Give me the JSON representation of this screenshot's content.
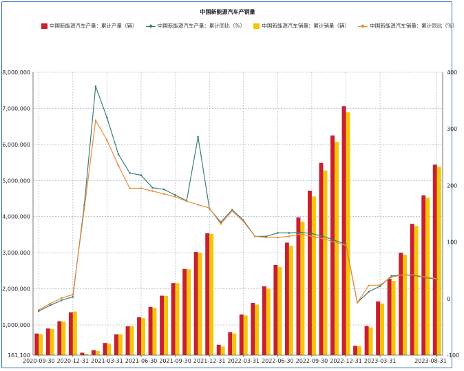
{
  "chart_data": {
    "type": "bar",
    "title": "中国新能源汽车产销量",
    "legend_position": "top",
    "grid": true,
    "x_tick_labels": [
      "2020-09-30",
      "2020-12-31",
      "2021-03-31",
      "2021-06-30",
      "2021-09-30",
      "2021-12-31",
      "2022-03-31",
      "2022-06-30",
      "2022-09-30",
      "2022-12-31",
      "2023-03-31",
      "2023-08-31"
    ],
    "y_left_ticks": [
      "161,100",
      "1,000,000",
      "2,000,000",
      "3,000,000",
      "4,000,000",
      "5,000,000",
      "6,000,000",
      "7,000,000",
      "8,000,000"
    ],
    "y_right_ticks": [
      "-100",
      "0",
      "100",
      "200",
      "300",
      "400"
    ],
    "ylim_left": [
      161100,
      8000000
    ],
    "ylim_right": [
      -100,
      400
    ],
    "colors": {
      "production": "#c8202e",
      "sales": "#f6c40a",
      "production_yoy": "#3a7c7c",
      "sales_yoy": "#ee8a33"
    },
    "months": [
      "2020-09",
      "2020-10",
      "2020-11",
      "2020-12",
      "2021-01",
      "2021-02",
      "2021-03",
      "2021-04",
      "2021-05",
      "2021-06",
      "2021-07",
      "2021-08",
      "2021-09",
      "2021-10",
      "2021-11",
      "2021-12",
      "2022-01",
      "2022-02",
      "2022-03",
      "2022-04",
      "2022-05",
      "2022-06",
      "2022-07",
      "2022-08",
      "2022-09",
      "2022-10",
      "2022-11",
      "2022-12",
      "2023-01",
      "2023-02",
      "2023-03",
      "2023-04",
      "2023-05",
      "2023-06",
      "2023-07",
      "2023-08"
    ],
    "series": [
      {
        "name": "中国新能源汽车产量：累计产量（辆）",
        "axis": "left",
        "type": "bar",
        "values": [
          760000,
          900000,
          1100000,
          1350000,
          230000,
          300000,
          500000,
          740000,
          960000,
          1210000,
          1500000,
          1810000,
          2160000,
          2550000,
          3020000,
          3540000,
          450000,
          800000,
          1290000,
          1610000,
          2070000,
          2660000,
          3280000,
          3980000,
          4720000,
          5490000,
          6250000,
          7060000,
          420000,
          970000,
          1650000,
          2280000,
          3000000,
          3800000,
          4590000,
          5440000
        ]
      },
      {
        "name": "中国新能源汽车产量：累计同比（%）",
        "axis": "right",
        "type": "line",
        "values": [
          -22,
          -12,
          -3,
          3,
          165,
          375,
          320,
          255,
          222,
          218,
          196,
          193,
          183,
          173,
          286,
          159,
          135,
          157,
          138,
          110,
          110,
          116,
          116,
          117,
          115,
          110,
          103,
          96,
          -7,
          12,
          22,
          40,
          42,
          41,
          37,
          34
        ]
      },
      {
        "name": "中国新能源汽车销量：累计销量（辆）",
        "axis": "left",
        "type": "bar",
        "values": [
          740000,
          890000,
          1090000,
          1370000,
          200000,
          280000,
          480000,
          740000,
          960000,
          1190000,
          1470000,
          1800000,
          2160000,
          2540000,
          3000000,
          3520000,
          400000,
          760000,
          1260000,
          1560000,
          2000000,
          2600000,
          3190000,
          3860000,
          4560000,
          5280000,
          6070000,
          6890000,
          410000,
          930000,
          1590000,
          2220000,
          2940000,
          3740000,
          4520000,
          5380000
        ]
      },
      {
        "name": "中国新能源汽车销量：累计同比（%）",
        "axis": "right",
        "type": "line",
        "values": [
          -20,
          -9,
          1,
          7,
          158,
          315,
          280,
          235,
          195,
          195,
          190,
          185,
          180,
          172,
          166,
          160,
          132,
          155,
          136,
          110,
          108,
          108,
          110,
          114,
          110,
          106,
          100,
          94,
          -7,
          23,
          24,
          38,
          42,
          42,
          38,
          35
        ]
      }
    ]
  }
}
